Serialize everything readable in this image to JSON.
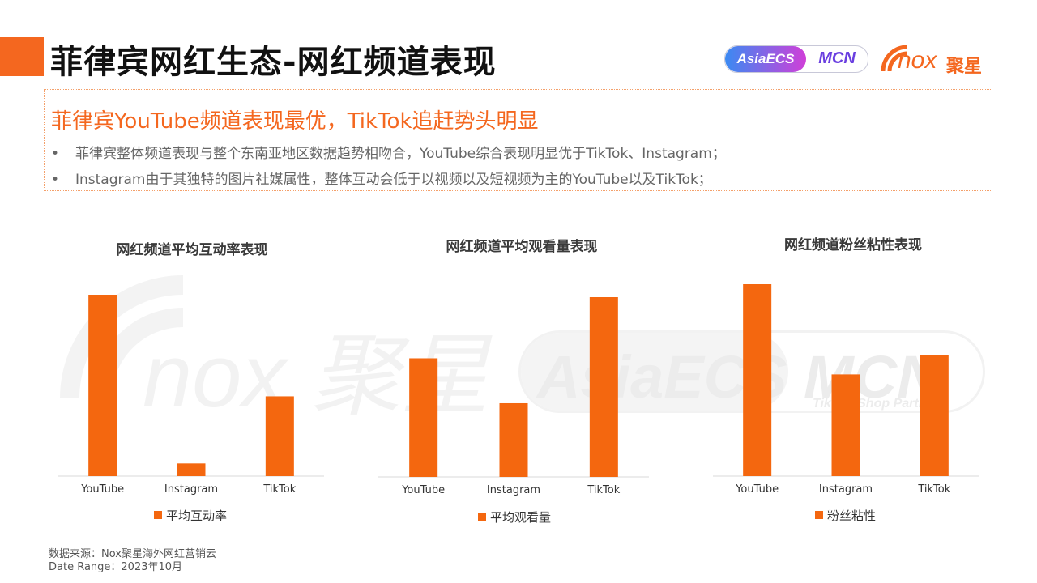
{
  "header": {
    "title": "菲律宾网红生态-网红频道表现",
    "logos": {
      "asiaecs_left": "AsiaECS",
      "asiaecs_right": "MCN",
      "asiaecs_sub": "TikTok Shop Partner",
      "nox_mark": "nox",
      "nox_brand": "聚星"
    }
  },
  "summary": {
    "headline": "菲律宾YouTube频道表现最优，TikTok追赶势头明显",
    "bullets": [
      "菲律宾整体频道表现与整个东南亚地区数据趋势相吻合，YouTube综合表现明显优于TikTok、Instagram；",
      "Instagram由于其独特的图片社媒属性，整体互动会低于以视频以及短视频为主的YouTube以及TikTok；"
    ]
  },
  "watermarks": {
    "nox": "nox 聚星",
    "asia": "AsiaECS MCN",
    "asia_sub": "TikTok Shop Partner"
  },
  "colors": {
    "accent": "#f4671f",
    "bar": "#f4670f"
  },
  "chart_data": [
    {
      "type": "bar",
      "title": "网红频道平均互动率表现",
      "categories": [
        "YouTube",
        "Instagram",
        "TikTok"
      ],
      "series": [
        {
          "name": "平均互动率",
          "values": [
            100,
            7,
            44
          ]
        }
      ],
      "ylim": [
        0,
        100
      ],
      "grid": false,
      "legend": "bottom"
    },
    {
      "type": "bar",
      "title": "网红频道平均观看量表现",
      "categories": [
        "YouTube",
        "Instagram",
        "TikTok"
      ],
      "series": [
        {
          "name": "平均观看量",
          "values": [
            66,
            41,
            100
          ]
        }
      ],
      "ylim": [
        0,
        100
      ],
      "grid": false,
      "legend": "bottom"
    },
    {
      "type": "bar",
      "title": "网红频道粉丝粘性表现",
      "categories": [
        "YouTube",
        "Instagram",
        "TikTok"
      ],
      "series": [
        {
          "name": "粉丝粘性",
          "values": [
            100,
            53,
            63
          ]
        }
      ],
      "ylim": [
        0,
        100
      ],
      "grid": false,
      "legend": "bottom"
    }
  ],
  "footer": {
    "source": "数据来源：Nox聚星海外网红营销云",
    "date_range": "Date Range：2023年10月"
  }
}
